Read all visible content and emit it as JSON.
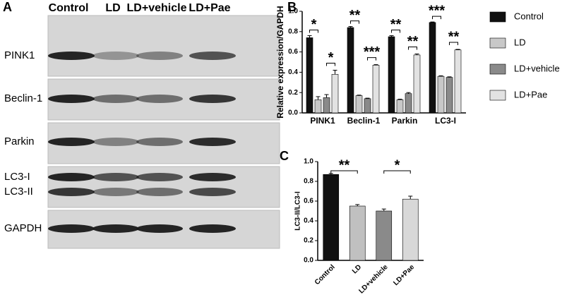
{
  "blot": {
    "label": "A",
    "lanes": [
      "Control",
      "LD",
      "LD+vehicle",
      "LD+Pae"
    ],
    "rows": [
      "PINK1",
      "Beclin-1",
      "Parkin",
      "LC3-I",
      "LC3-II",
      "GAPDH"
    ]
  },
  "chart_data": [
    {
      "type": "grouped-bar",
      "label": "B",
      "y_label": "Relative expression/GAPDH",
      "categories": [
        "PINK1",
        "Beclin-1",
        "Parkin",
        "LC3-I"
      ],
      "series": [
        {
          "name": "Control",
          "color": "#111111",
          "values": [
            0.74,
            0.84,
            0.75,
            0.89
          ],
          "errors": [
            0.02,
            0.01,
            0.01,
            0.005
          ]
        },
        {
          "name": "LD",
          "color": "#c8c8c8",
          "values": [
            0.13,
            0.17,
            0.13,
            0.36
          ],
          "errors": [
            0.03,
            0.005,
            0.005,
            0.005
          ]
        },
        {
          "name": "LD+vehicle",
          "color": "#8a8a8a",
          "values": [
            0.15,
            0.14,
            0.19,
            0.35
          ],
          "errors": [
            0.03,
            0.005,
            0.01,
            0.005
          ]
        },
        {
          "name": "LD+Pae",
          "color": "#e2e2e2",
          "values": [
            0.38,
            0.47,
            0.57,
            0.62
          ],
          "errors": [
            0.04,
            0.005,
            0.01,
            0.005
          ]
        }
      ],
      "significance": [
        [
          "*",
          "*"
        ],
        [
          "**",
          "***"
        ],
        [
          "**",
          "**"
        ],
        [
          "***",
          "**"
        ]
      ],
      "ylim": [
        0,
        1.0
      ],
      "yticks": [
        {
          "value": 0,
          "label": "0.0"
        },
        0.2,
        0.4,
        0.6,
        0.8,
        {
          "value": 1.0,
          "label": "1.0"
        }
      ],
      "legend": "right"
    },
    {
      "type": "bar",
      "label": "C",
      "y_label": "LC3-II/LC3-I",
      "categories": [
        "Control",
        "LD",
        "LD+vehicle",
        "LD+Pae"
      ],
      "values": [
        0.87,
        0.55,
        0.5,
        0.62
      ],
      "errors": [
        0.01,
        0.015,
        0.02,
        0.03
      ],
      "colors": [
        "#111111",
        "#c0c0c0",
        "#8a8a8a",
        "#d8d8d8"
      ],
      "significance": [
        "**",
        "*"
      ],
      "ylim": [
        0,
        1.0
      ],
      "yticks": [
        {
          "value": 0,
          "label": "0.0"
        },
        0.2,
        0.4,
        0.6,
        0.8,
        {
          "value": 1.0,
          "label": "1.0"
        }
      ]
    }
  ]
}
